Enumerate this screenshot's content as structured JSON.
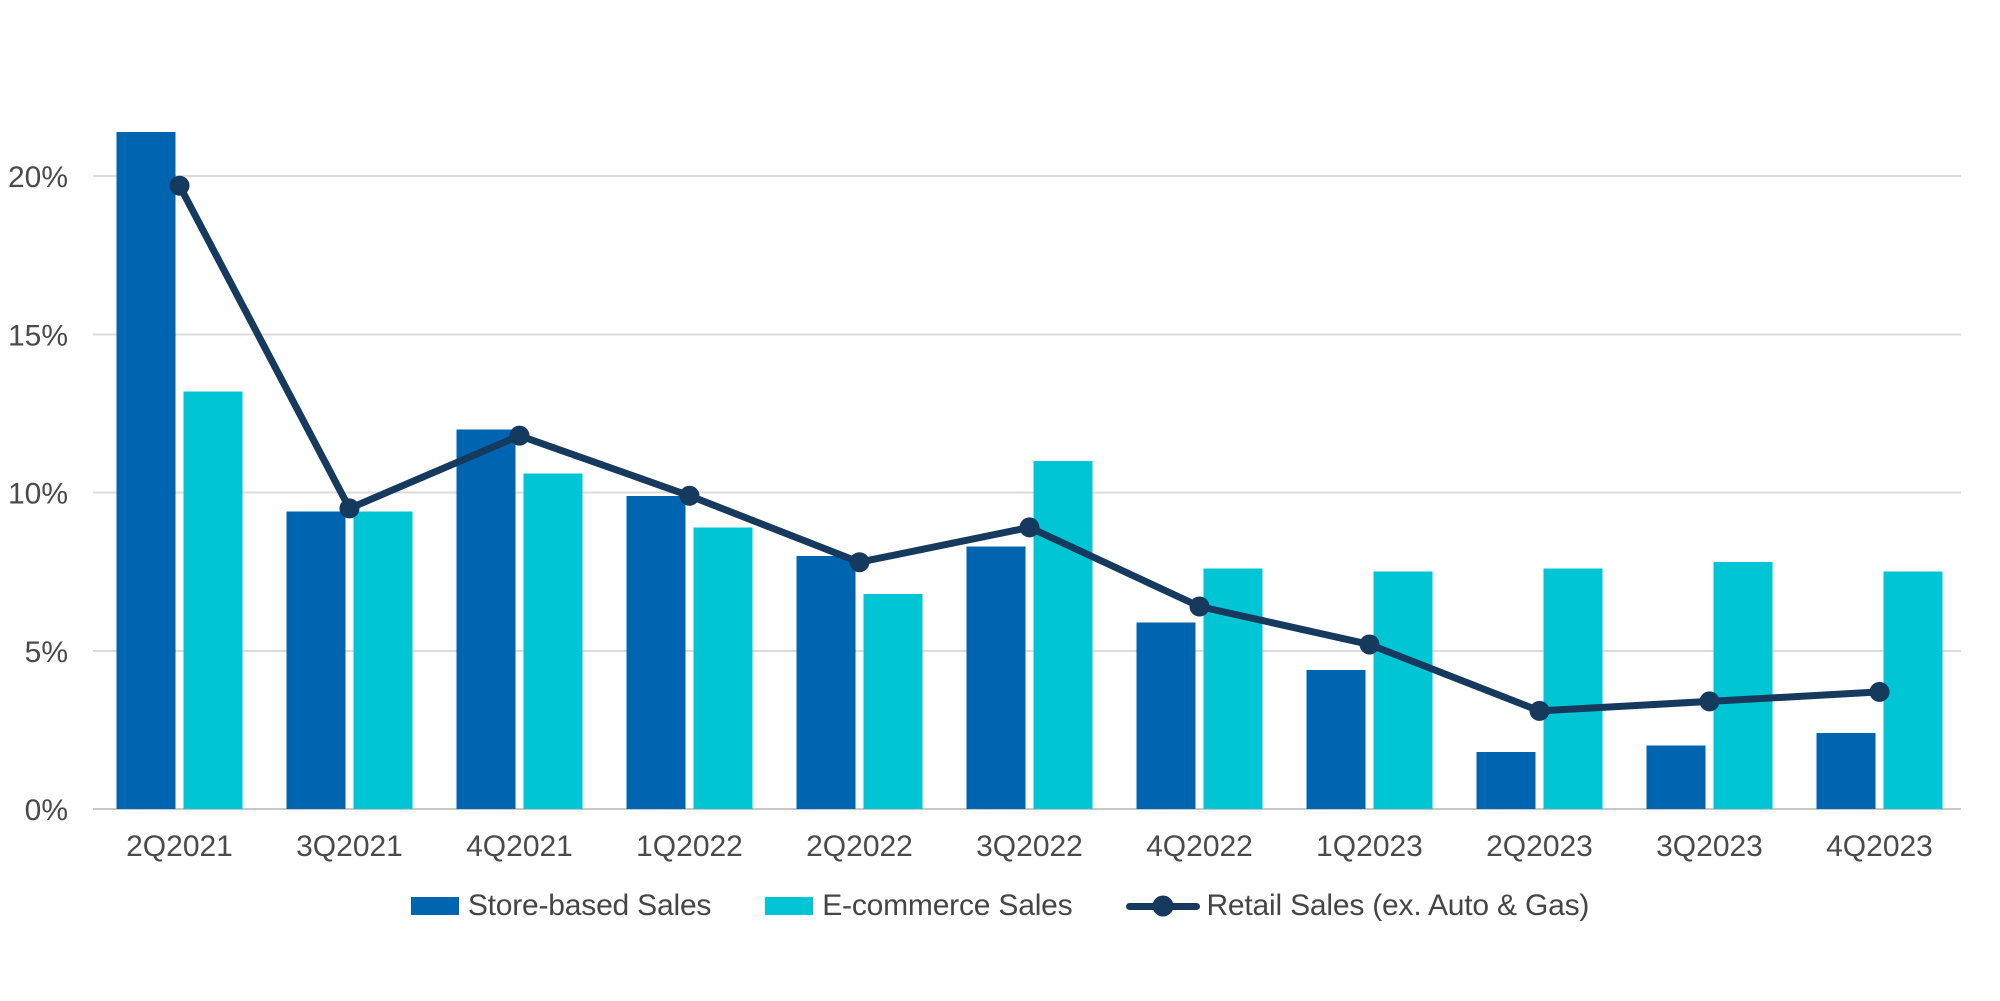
{
  "chart_data": {
    "type": "bar",
    "subtype": "grouped-bar-with-line-overlay",
    "title": "",
    "xlabel": "",
    "ylabel": "",
    "categories": [
      "2Q2021",
      "3Q2021",
      "4Q2021",
      "1Q2022",
      "2Q2022",
      "3Q2022",
      "4Q2022",
      "1Q2023",
      "2Q2023",
      "3Q2023",
      "4Q2023"
    ],
    "series": [
      {
        "name": "Store-based Sales",
        "type": "bar",
        "color": "#0065B1",
        "values": [
          21.4,
          9.4,
          12.0,
          9.9,
          8.0,
          8.3,
          5.9,
          4.4,
          1.8,
          2.0,
          2.4
        ]
      },
      {
        "name": "E-commerce Sales",
        "type": "bar",
        "color": "#00C5D4",
        "values": [
          13.2,
          9.4,
          10.6,
          8.9,
          6.8,
          11.0,
          7.6,
          7.5,
          7.6,
          7.8,
          7.5
        ]
      },
      {
        "name": "Retail Sales (ex. Auto & Gas)",
        "type": "line",
        "color": "#16395E",
        "values": [
          19.7,
          9.5,
          11.8,
          9.9,
          7.8,
          8.9,
          6.4,
          5.2,
          3.1,
          3.4,
          3.7
        ]
      }
    ],
    "yticks": [
      0,
      5,
      10,
      15,
      20
    ],
    "ytick_labels": [
      "0%",
      "5%",
      "10%",
      "15%",
      "20%"
    ],
    "ylim": [
      0,
      22.5
    ],
    "unit": "percent",
    "grid": "horizontal",
    "legend_position": "bottom",
    "colors": {
      "background": "#FFFFFF",
      "gridline": "#DBDBDB",
      "baseline": "#C8C8C8",
      "axis_text": "#4A4A4A",
      "legend_text": "#454545"
    }
  }
}
